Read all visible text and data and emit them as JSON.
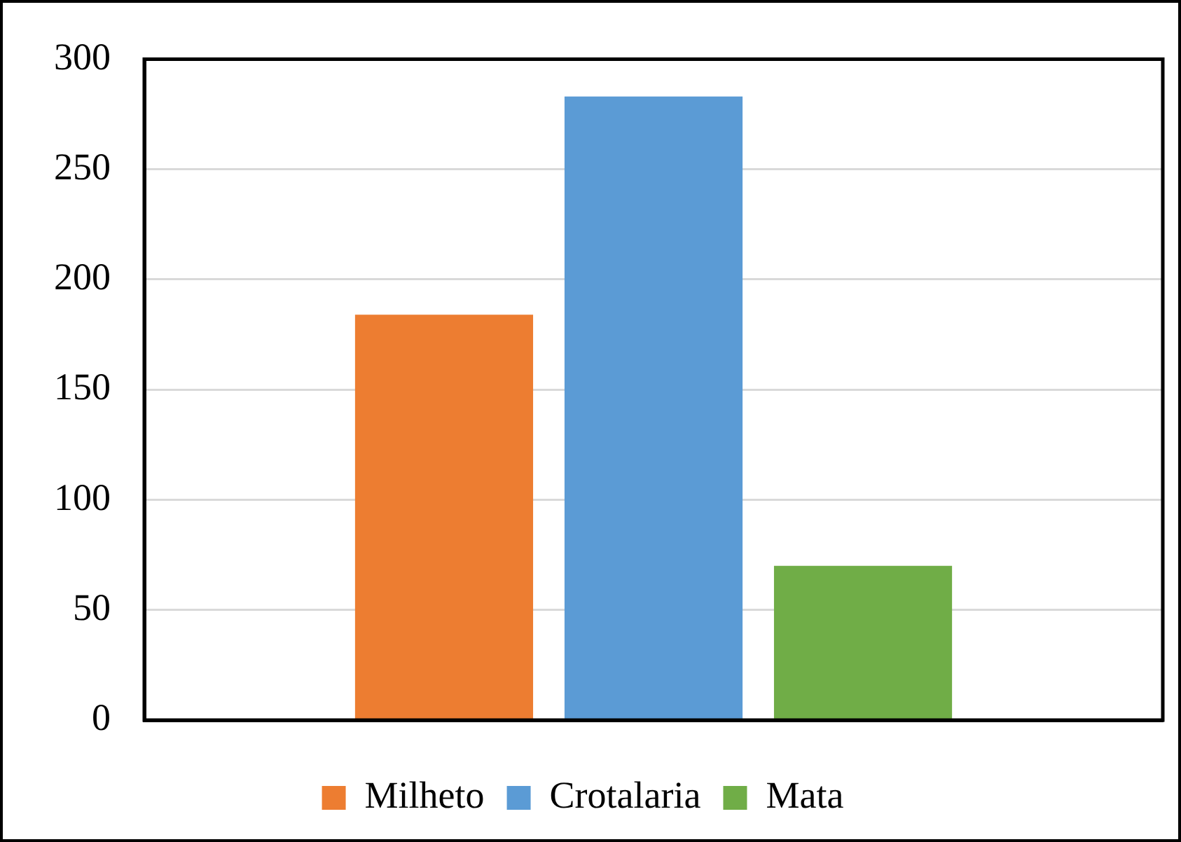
{
  "chart_data": {
    "type": "bar",
    "categories": [
      null
    ],
    "series": [
      {
        "name": "Milheto",
        "color": "#ed7d31",
        "values": [
          184
        ]
      },
      {
        "name": "Crotalaria",
        "color": "#5b9bd5",
        "values": [
          283
        ]
      },
      {
        "name": "Mata",
        "color": "#70ad47",
        "values": [
          70
        ]
      }
    ],
    "ylim": [
      0,
      300
    ],
    "yticks": [
      0,
      50,
      100,
      150,
      200,
      250,
      300
    ],
    "grid": "y",
    "legend": "bottom",
    "tick_labels": "y"
  }
}
